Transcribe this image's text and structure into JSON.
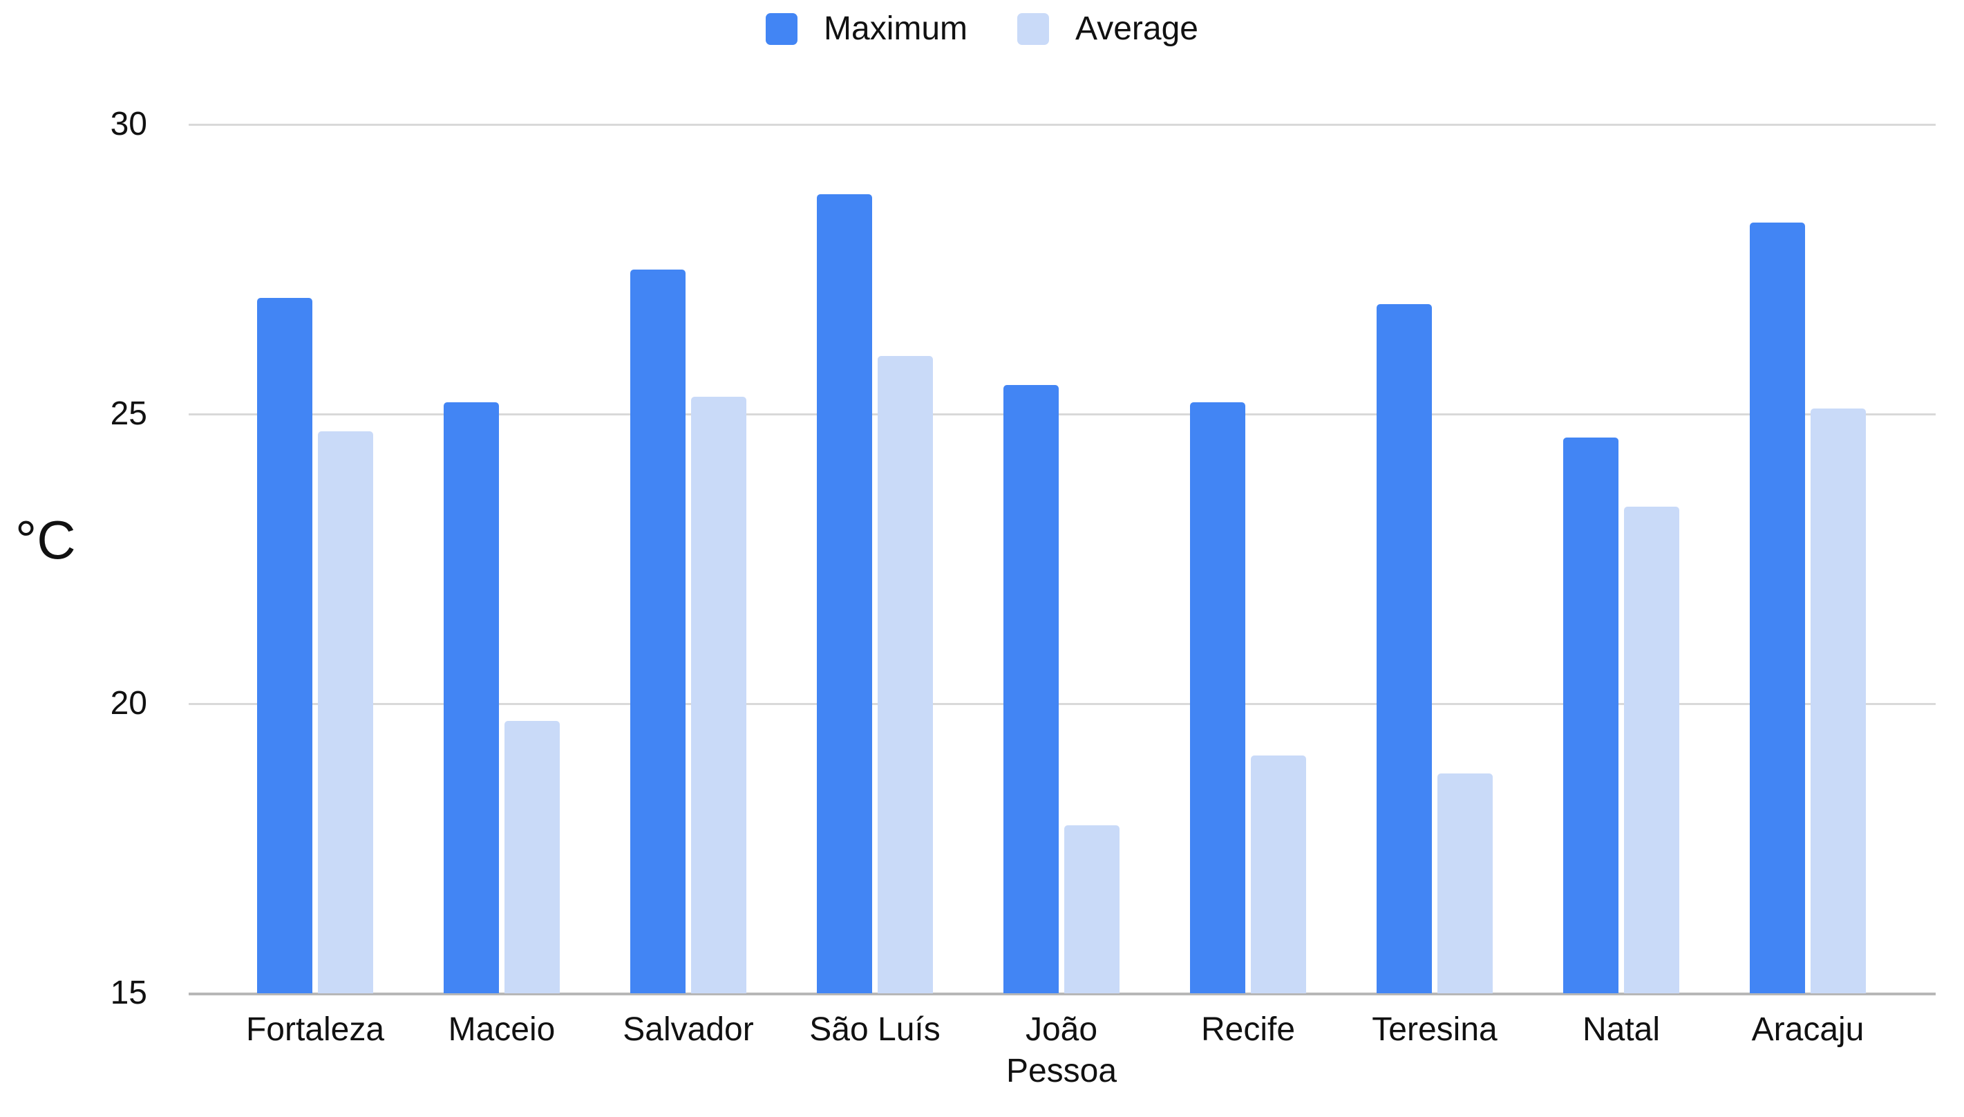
{
  "chart_data": {
    "type": "bar",
    "title": "",
    "ylabel": "°C",
    "categories": [
      "Fortaleza",
      "Maceio",
      "Salvador",
      "São Luís",
      "João\nPessoa",
      "Recife",
      "Teresina",
      "Natal",
      "Aracaju"
    ],
    "series": [
      {
        "name": "Maximum",
        "color": "#4285F4",
        "values": [
          27.0,
          25.2,
          27.5,
          28.8,
          25.5,
          25.2,
          26.9,
          24.6,
          28.3
        ]
      },
      {
        "name": "Average",
        "color": "#C9DAF8",
        "values": [
          24.7,
          19.7,
          25.3,
          26.0,
          17.9,
          19.1,
          18.8,
          23.4,
          25.1
        ]
      }
    ],
    "ylim": [
      15,
      30
    ],
    "yticks": [
      15,
      20,
      25,
      30
    ],
    "grid": true,
    "legend_position": "top",
    "colors": {
      "gridline": "#d9d9d9",
      "baseline": "#b7b7b7",
      "text": "#111111",
      "background": "#ffffff"
    }
  }
}
